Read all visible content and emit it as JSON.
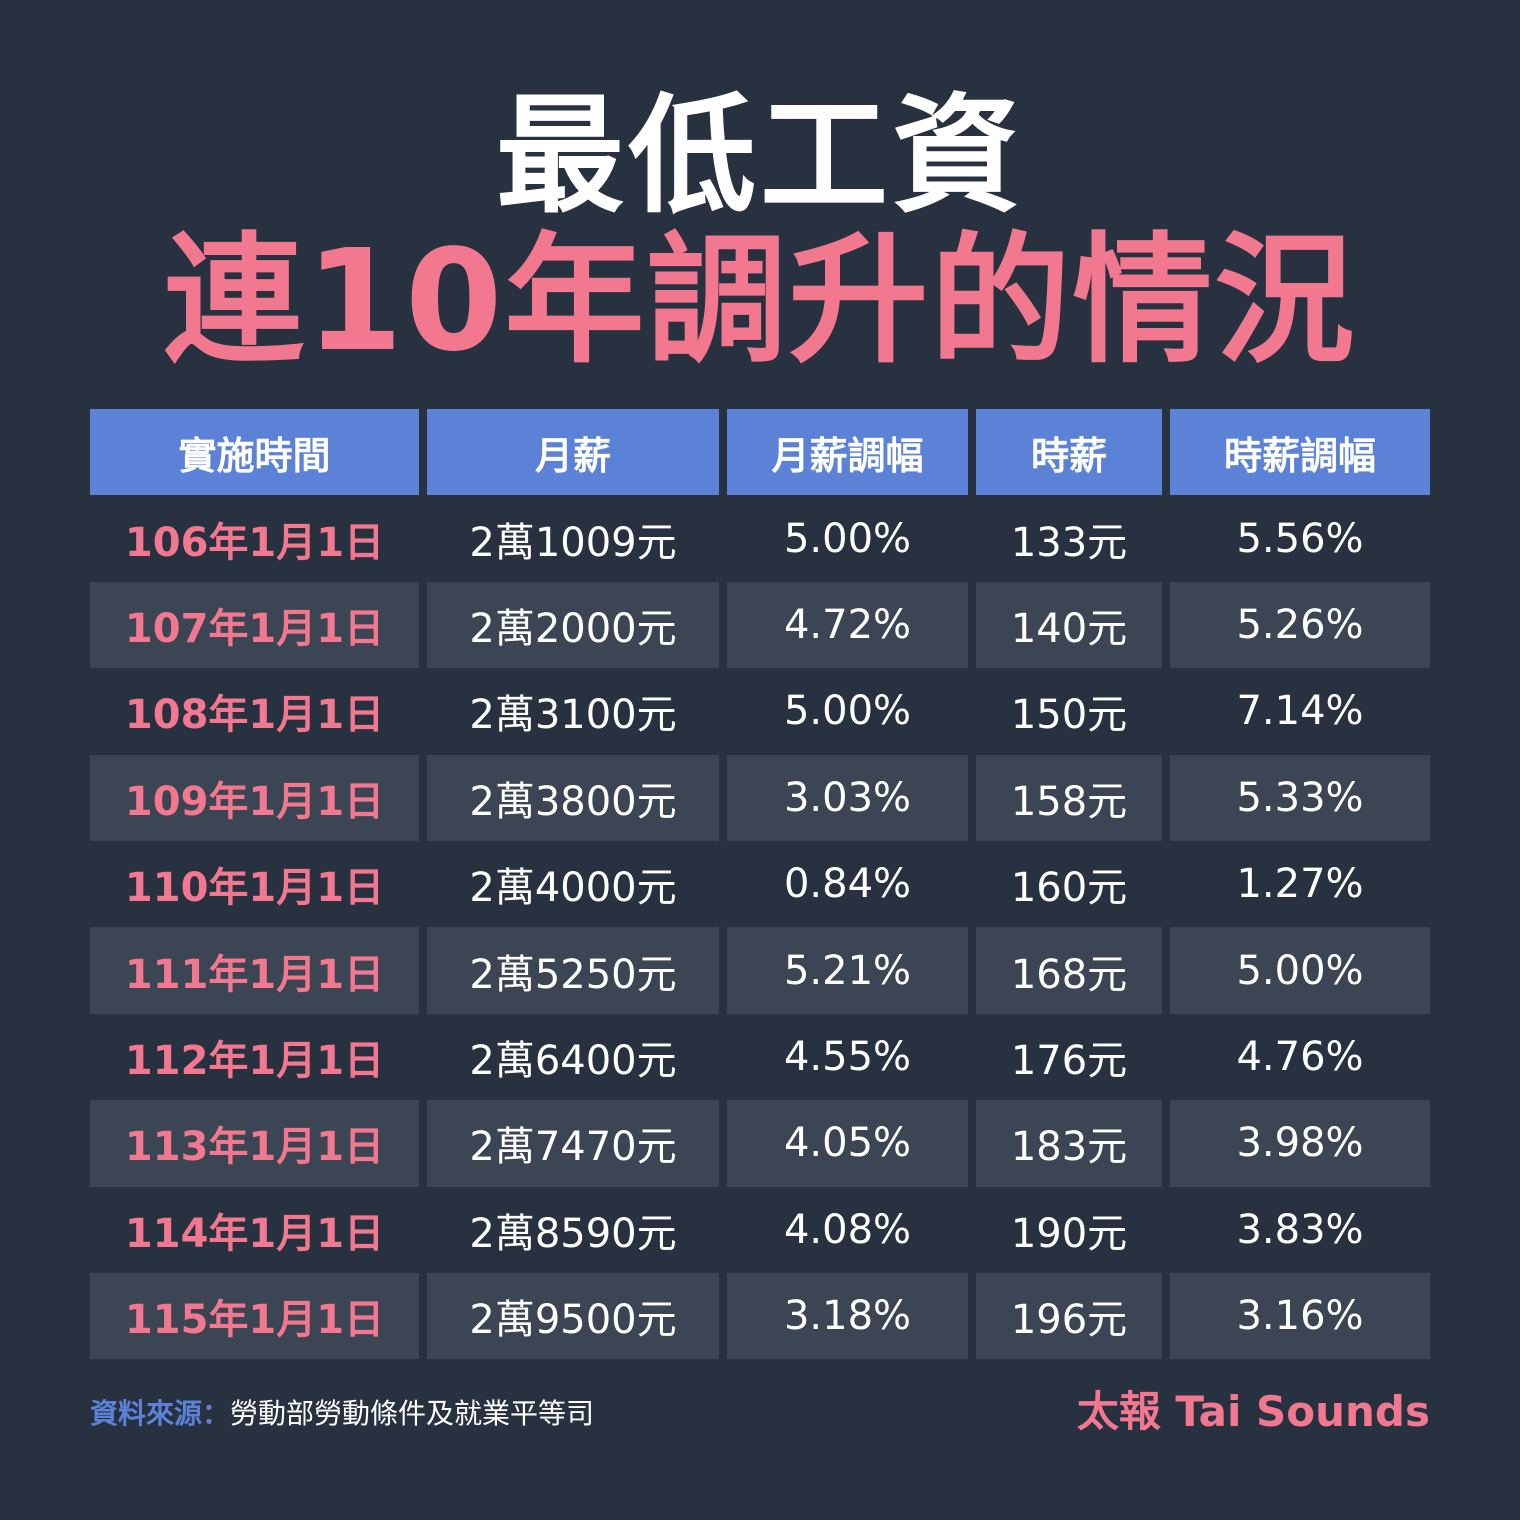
{
  "title": "最低工資",
  "subtitle": "連10年調升的情況",
  "chart_data": {
    "type": "table",
    "columns": [
      "實施時間",
      "月薪",
      "月薪調幅",
      "時薪",
      "時薪調幅"
    ],
    "rows": [
      [
        "106年1月1日",
        "2萬1009元",
        "5.00%",
        "133元",
        "5.56%"
      ],
      [
        "107年1月1日",
        "2萬2000元",
        "4.72%",
        "140元",
        "5.26%"
      ],
      [
        "108年1月1日",
        "2萬3100元",
        "5.00%",
        "150元",
        "7.14%"
      ],
      [
        "109年1月1日",
        "2萬3800元",
        "3.03%",
        "158元",
        "5.33%"
      ],
      [
        "110年1月1日",
        "2萬4000元",
        "0.84%",
        "160元",
        "1.27%"
      ],
      [
        "111年1月1日",
        "2萬5250元",
        "5.21%",
        "168元",
        "5.00%"
      ],
      [
        "112年1月1日",
        "2萬6400元",
        "4.55%",
        "176元",
        "4.76%"
      ],
      [
        "113年1月1日",
        "2萬7470元",
        "4.05%",
        "183元",
        "3.98%"
      ],
      [
        "114年1月1日",
        "2萬8590元",
        "4.08%",
        "190元",
        "3.83%"
      ],
      [
        "115年1月1日",
        "2萬9500元",
        "3.18%",
        "196元",
        "3.16%"
      ]
    ]
  },
  "footer": {
    "source_label": "資料來源：",
    "source_text": "勞動部勞動條件及就業平等司",
    "brand": "太報 Tai Sounds"
  },
  "colors": {
    "background": "#283140",
    "header": "#5b82d6",
    "accent": "#f2788f",
    "stripe": "#3c4553"
  }
}
